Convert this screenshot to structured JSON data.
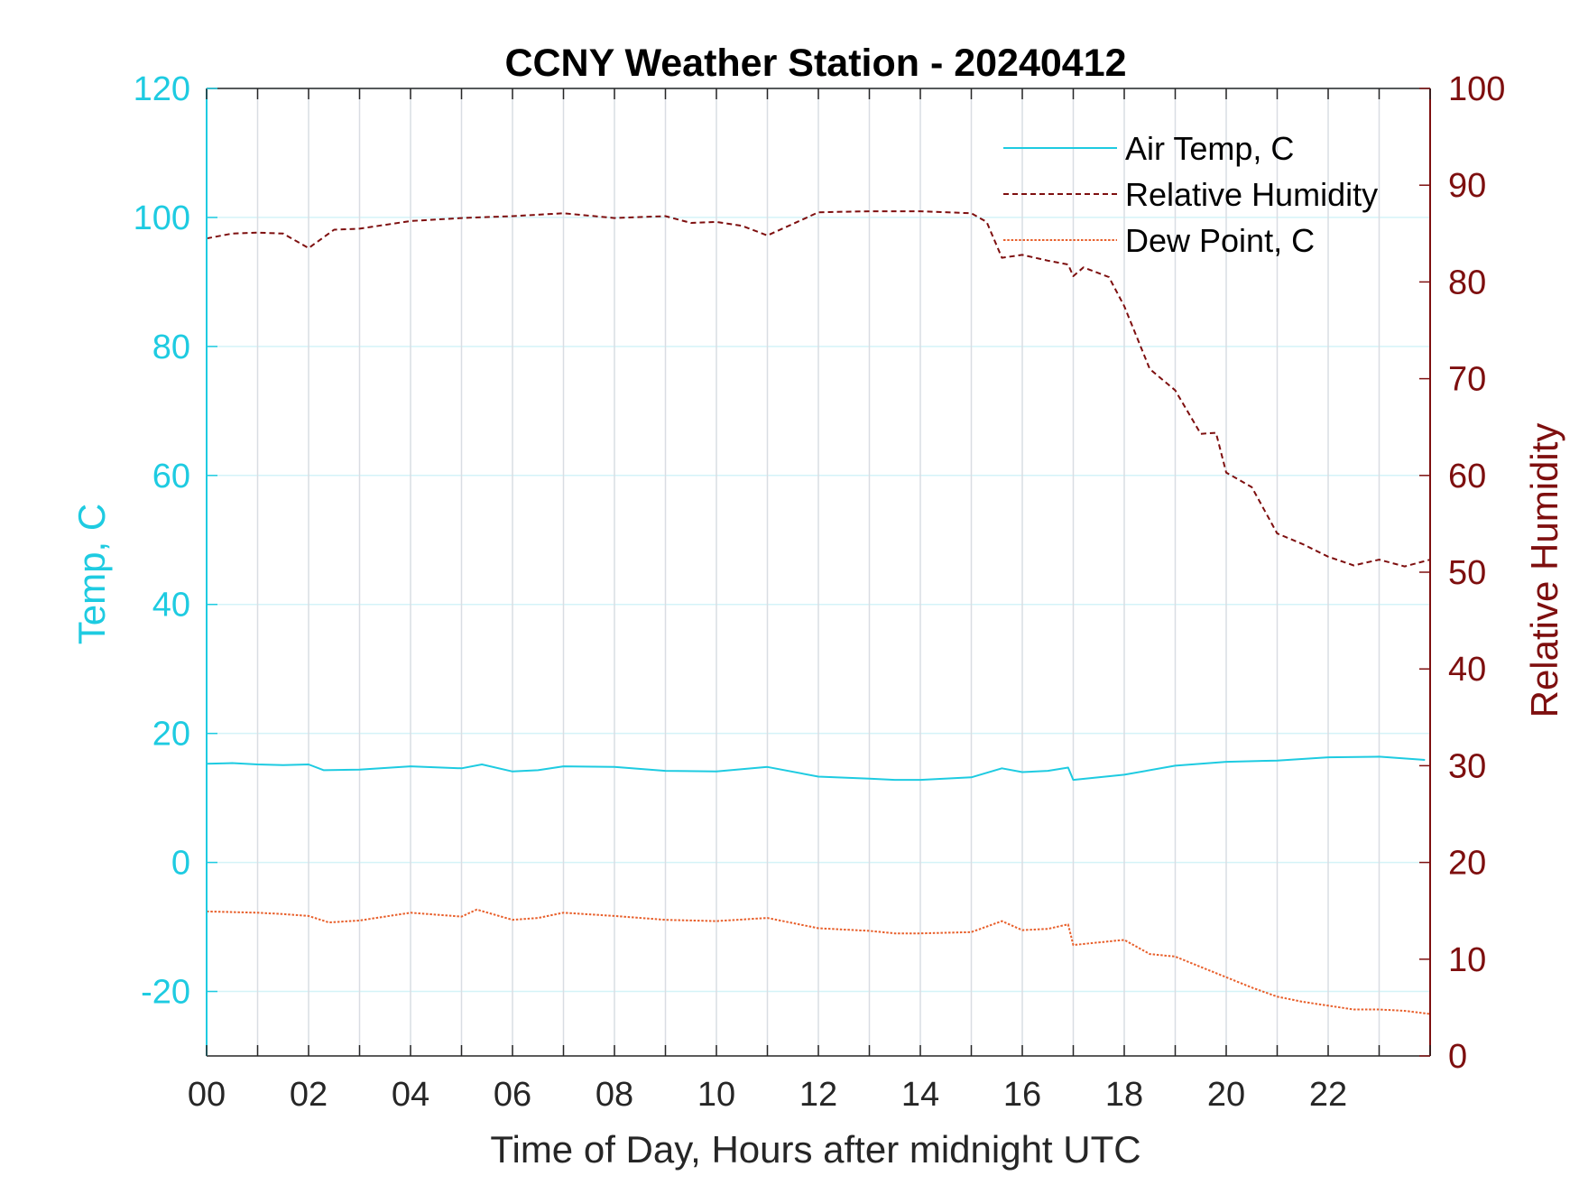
{
  "chart_data": {
    "type": "line",
    "title": "CCNY Weather Station - 20240412",
    "xlabel": "Time of Day, Hours after midnight UTC",
    "ylabel_left": "Temp, C",
    "ylabel_right": "Relative Humidity",
    "xlim": [
      0,
      24
    ],
    "ylim_left": [
      -30,
      120
    ],
    "ylim_right": [
      0,
      100
    ],
    "x_ticks": [
      "00",
      "02",
      "04",
      "06",
      "08",
      "10",
      "12",
      "14",
      "16",
      "18",
      "20",
      "22"
    ],
    "y_ticks_left": [
      "-20",
      "0",
      "20",
      "40",
      "60",
      "80",
      "100",
      "120"
    ],
    "y_ticks_right": [
      "0",
      "10",
      "20",
      "30",
      "40",
      "50",
      "60",
      "70",
      "80",
      "90",
      "100"
    ],
    "grid": true,
    "legend_position": "top-right",
    "colors": {
      "air_temp": "#1ecbe1",
      "relative_humidity": "#7e0f0f",
      "dew_point": "#e8602c",
      "axis_text": "#262626"
    },
    "series": [
      {
        "name": "Air Temp, C",
        "axis": "left",
        "style": "solid",
        "x": [
          0,
          0.5,
          1,
          1.5,
          2,
          2.3,
          3,
          4,
          5,
          5.4,
          6,
          6.5,
          7,
          8,
          9,
          10,
          11,
          12,
          13,
          13.5,
          14,
          15,
          15.6,
          16,
          16.5,
          16.9,
          17.0,
          18,
          19,
          20,
          21,
          22,
          23,
          23.9
        ],
        "y": [
          15.3,
          15.4,
          15.2,
          15.1,
          15.2,
          14.3,
          14.4,
          14.9,
          14.6,
          15.2,
          14.1,
          14.3,
          14.9,
          14.8,
          14.2,
          14.1,
          14.8,
          13.3,
          13.0,
          12.8,
          12.8,
          13.2,
          14.6,
          14.0,
          14.2,
          14.7,
          12.8,
          13.6,
          15.0,
          15.6,
          15.8,
          16.3,
          16.4,
          15.9
        ]
      },
      {
        "name": "Relative Humidity",
        "axis": "right",
        "style": "dashed",
        "x": [
          0,
          0.5,
          1,
          1.5,
          2,
          2.5,
          3,
          4,
          5,
          6,
          7,
          8,
          9,
          9.5,
          10,
          10.5,
          11,
          11.5,
          12,
          13,
          14,
          15,
          15.3,
          15.6,
          16,
          16.5,
          16.9,
          17.0,
          17.2,
          17.7,
          18,
          18.5,
          19,
          19.5,
          19.8,
          20,
          20.5,
          21,
          21.5,
          22,
          22.5,
          23,
          23.5,
          24
        ],
        "y": [
          84.5,
          85.0,
          85.1,
          85.0,
          83.5,
          85.4,
          85.5,
          86.3,
          86.6,
          86.8,
          87.1,
          86.6,
          86.8,
          86.1,
          86.2,
          85.8,
          84.8,
          86.0,
          87.2,
          87.3,
          87.3,
          87.1,
          86.2,
          82.5,
          82.8,
          82.2,
          81.8,
          80.6,
          81.5,
          80.5,
          77.5,
          71.0,
          68.8,
          64.3,
          64.4,
          60.3,
          58.8,
          54.0,
          52.9,
          51.6,
          50.7,
          51.3,
          50.6,
          51.3
        ]
      },
      {
        "name": "Dew Point, C",
        "axis": "left",
        "style": "dotted",
        "x": [
          0,
          0.5,
          1,
          1.5,
          2,
          2.4,
          3,
          4,
          5,
          5.3,
          6,
          6.5,
          7,
          8,
          9,
          10,
          11,
          12,
          13,
          13.5,
          14,
          15,
          15.6,
          16,
          16.5,
          16.9,
          17.0,
          17.5,
          18,
          18.5,
          19,
          19.5,
          20,
          20.5,
          21,
          21.5,
          22,
          22.5,
          23,
          23.5,
          24
        ],
        "y": [
          -7.6,
          -7.7,
          -7.8,
          -8.0,
          -8.3,
          -9.3,
          -9.0,
          -7.8,
          -8.4,
          -7.3,
          -8.9,
          -8.6,
          -7.8,
          -8.3,
          -8.9,
          -9.1,
          -8.6,
          -10.2,
          -10.6,
          -11.0,
          -11.0,
          -10.8,
          -9.1,
          -10.5,
          -10.3,
          -9.6,
          -12.8,
          -12.4,
          -12.0,
          -14.2,
          -14.6,
          -16.2,
          -17.8,
          -19.4,
          -20.8,
          -21.6,
          -22.2,
          -22.8,
          -22.8,
          -23.0,
          -23.5
        ]
      }
    ]
  }
}
